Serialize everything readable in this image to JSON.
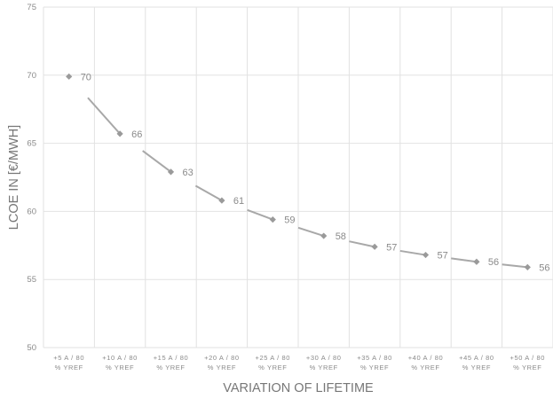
{
  "chart_data": {
    "type": "line",
    "title": "",
    "xlabel": "VARIATION OF LIFETIME",
    "ylabel": "LCOE IN [€/MWH]",
    "ylim": [
      50,
      75
    ],
    "yticks": [
      50,
      55,
      60,
      65,
      70,
      75
    ],
    "grid": true,
    "categories": [
      [
        "+5 A / 80",
        "% YREF"
      ],
      [
        "+10 A / 80",
        "% YREF"
      ],
      [
        "+15 A / 80",
        "% YREF"
      ],
      [
        "+20 A / 80",
        "% YREF"
      ],
      [
        "+25 A / 80",
        "% YREF"
      ],
      [
        "+30 A / 80",
        "% YREF"
      ],
      [
        "+35 A / 80",
        "% YREF"
      ],
      [
        "+40 A / 80",
        "% YREF"
      ],
      [
        "+45 A / 80",
        "% YREF"
      ],
      [
        "+50 A / 80",
        "% YREF"
      ]
    ],
    "series": [
      {
        "values": [
          69.9,
          65.7,
          62.9,
          60.8,
          59.4,
          58.2,
          57.4,
          56.8,
          56.3,
          55.9
        ],
        "data_labels": [
          "70",
          "66",
          "63",
          "61",
          "59",
          "58",
          "57",
          "57",
          "56",
          "56"
        ]
      }
    ],
    "colors": {
      "line": "#a8a8a8",
      "marker": "#9a9a9a",
      "grid": "#e2e2e2",
      "text": "#8a8a8a"
    }
  }
}
